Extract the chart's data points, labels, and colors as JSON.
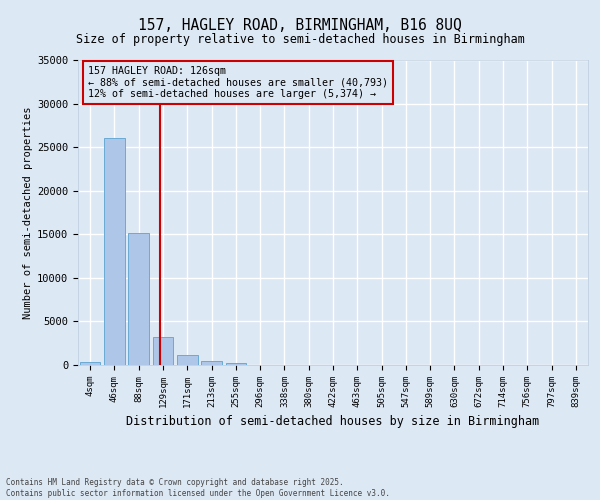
{
  "title1": "157, HAGLEY ROAD, BIRMINGHAM, B16 8UQ",
  "title2": "Size of property relative to semi-detached houses in Birmingham",
  "xlabel": "Distribution of semi-detached houses by size in Birmingham",
  "ylabel": "Number of semi-detached properties",
  "categories": [
    "4sqm",
    "46sqm",
    "88sqm",
    "129sqm",
    "171sqm",
    "213sqm",
    "255sqm",
    "296sqm",
    "338sqm",
    "380sqm",
    "422sqm",
    "463sqm",
    "505sqm",
    "547sqm",
    "589sqm",
    "630sqm",
    "672sqm",
    "714sqm",
    "756sqm",
    "797sqm",
    "839sqm"
  ],
  "bar_values": [
    400,
    26100,
    15100,
    3200,
    1100,
    480,
    280,
    0,
    0,
    0,
    0,
    0,
    0,
    0,
    0,
    0,
    0,
    0,
    0,
    0,
    0
  ],
  "bar_color": "#aec6e8",
  "bar_edgecolor": "#6aaad4",
  "vline_x": 2.88,
  "vline_color": "#cc0000",
  "annotation_title": "157 HAGLEY ROAD: 126sqm",
  "annotation_line1": "← 88% of semi-detached houses are smaller (40,793)",
  "annotation_line2": "12% of semi-detached houses are larger (5,374) →",
  "annotation_box_color": "#cc0000",
  "ylim": [
    0,
    35000
  ],
  "yticks": [
    0,
    5000,
    10000,
    15000,
    20000,
    25000,
    30000,
    35000
  ],
  "ytick_labels": [
    "0",
    "5000",
    "10000",
    "15000",
    "20000",
    "25000",
    "30000",
    "35000"
  ],
  "bg_color": "#dde8f5",
  "grid_color": "#ffffff",
  "footer1": "Contains HM Land Registry data © Crown copyright and database right 2025.",
  "footer2": "Contains public sector information licensed under the Open Government Licence v3.0."
}
